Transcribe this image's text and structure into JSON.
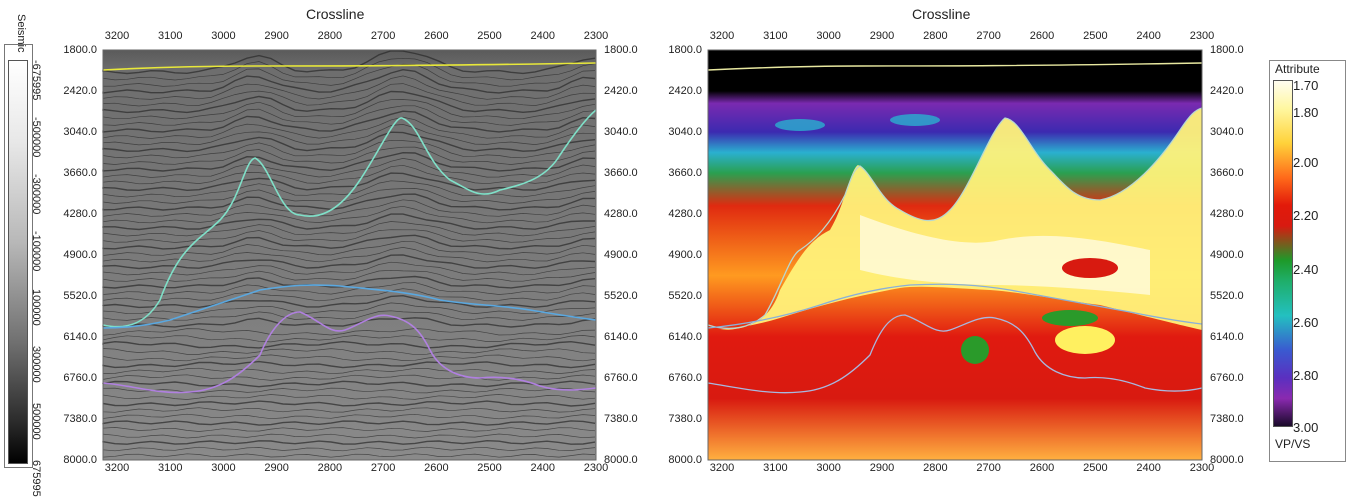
{
  "left_panel": {
    "title": "Crossline",
    "x_ticks": [
      "3200",
      "3100",
      "3000",
      "2900",
      "2800",
      "2700",
      "2600",
      "2500",
      "2400",
      "2300"
    ],
    "y_ticks": [
      "1800.0",
      "2420.0",
      "3040.0",
      "3660.0",
      "4280.0",
      "4900.0",
      "5520.0",
      "6140.0",
      "6760.0",
      "7380.0",
      "8000.0"
    ]
  },
  "right_panel": {
    "title": "Crossline",
    "x_ticks": [
      "3200",
      "3100",
      "3000",
      "2900",
      "2800",
      "2700",
      "2600",
      "2500",
      "2400",
      "2300"
    ],
    "y_ticks": [
      "1800.0",
      "2420.0",
      "3040.0",
      "3660.0",
      "4280.0",
      "4900.0",
      "5520.0",
      "6140.0",
      "6760.0",
      "7380.0",
      "8000.0"
    ]
  },
  "seismic_colorbar": {
    "label": "Seismic",
    "ticks": [
      "-675995",
      "-500000",
      "-300000",
      "-100000",
      "100000",
      "300000",
      "500000",
      "675995"
    ]
  },
  "attribute_colorbar": {
    "title": "Attribute",
    "unit": "VP/VS",
    "ticks": [
      "1.70",
      "1.80",
      "2.00",
      "2.20",
      "2.40",
      "2.60",
      "2.80",
      "3.00"
    ]
  },
  "colors": {
    "horizon_top": "#e8e83a",
    "horizon_salt_top": "#7fe0c8",
    "horizon_salt_base": "#5aa8e0",
    "horizon_deep": "#b080e0"
  }
}
